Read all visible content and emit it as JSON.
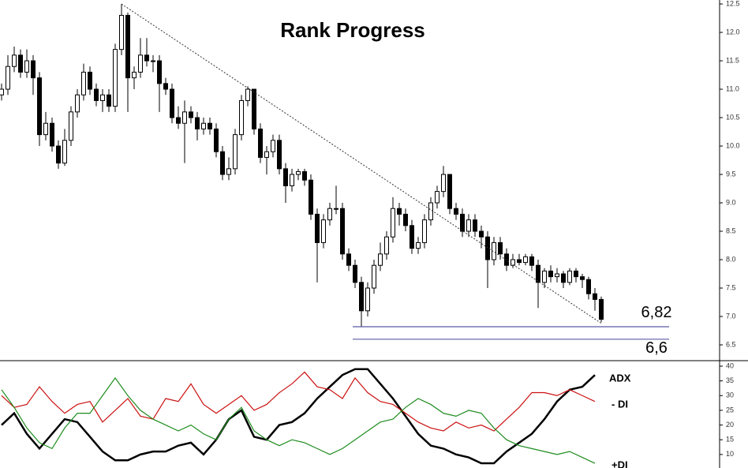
{
  "chart_data": [
    {
      "type": "candlestick",
      "title": "Rank Progress",
      "ohlc": [
        [
          10.9,
          11.1,
          10.8,
          11.0
        ],
        [
          11.0,
          11.6,
          10.9,
          11.4
        ],
        [
          11.4,
          11.75,
          11.3,
          11.6
        ],
        [
          11.6,
          11.7,
          11.2,
          11.3
        ],
        [
          11.3,
          11.7,
          11.2,
          11.5
        ],
        [
          11.5,
          11.6,
          10.9,
          11.2
        ],
        [
          11.2,
          11.3,
          10.0,
          10.2
        ],
        [
          10.2,
          10.6,
          10.1,
          10.4
        ],
        [
          10.4,
          10.5,
          9.9,
          10.0
        ],
        [
          10.0,
          10.1,
          9.6,
          9.7
        ],
        [
          9.7,
          10.3,
          9.65,
          10.1
        ],
        [
          10.1,
          10.7,
          10.0,
          10.6
        ],
        [
          10.6,
          11.0,
          10.5,
          10.9
        ],
        [
          10.9,
          11.45,
          10.8,
          11.3
        ],
        [
          11.3,
          11.4,
          10.9,
          11.0
        ],
        [
          11.0,
          11.1,
          10.7,
          10.8
        ],
        [
          10.8,
          11.0,
          10.6,
          10.9
        ],
        [
          10.9,
          11.0,
          10.6,
          10.7
        ],
        [
          10.7,
          11.8,
          10.6,
          11.7
        ],
        [
          11.7,
          12.5,
          11.6,
          12.3
        ],
        [
          12.3,
          12.35,
          10.6,
          11.2
        ],
        [
          11.2,
          11.4,
          11.0,
          11.3
        ],
        [
          11.3,
          11.9,
          11.2,
          11.6
        ],
        [
          11.6,
          11.9,
          11.4,
          11.5
        ],
        [
          11.5,
          11.6,
          11.3,
          11.5
        ],
        [
          11.5,
          11.6,
          10.6,
          11.1
        ],
        [
          11.1,
          11.2,
          10.9,
          11.0
        ],
        [
          11.0,
          11.1,
          10.4,
          10.5
        ],
        [
          10.5,
          10.7,
          10.3,
          10.4
        ],
        [
          10.4,
          10.8,
          9.7,
          10.6
        ],
        [
          10.6,
          10.7,
          10.4,
          10.5
        ],
        [
          10.5,
          10.6,
          10.1,
          10.3
        ],
        [
          10.3,
          10.5,
          10.2,
          10.4
        ],
        [
          10.4,
          10.5,
          10.2,
          10.3
        ],
        [
          10.3,
          10.4,
          9.8,
          9.9
        ],
        [
          9.9,
          10.0,
          9.4,
          9.5
        ],
        [
          9.5,
          9.8,
          9.4,
          9.6
        ],
        [
          9.6,
          10.3,
          9.5,
          10.2
        ],
        [
          10.2,
          10.9,
          10.1,
          10.8
        ],
        [
          10.8,
          11.05,
          10.7,
          11.0
        ],
        [
          11.0,
          11.0,
          10.2,
          10.3
        ],
        [
          10.3,
          10.4,
          9.7,
          9.8
        ],
        [
          9.8,
          10.0,
          9.5,
          9.9
        ],
        [
          9.9,
          10.2,
          9.8,
          10.1
        ],
        [
          10.1,
          10.2,
          9.5,
          9.6
        ],
        [
          9.6,
          9.7,
          9.0,
          9.3
        ],
        [
          9.3,
          9.6,
          9.2,
          9.5
        ],
        [
          9.5,
          9.6,
          9.4,
          9.55
        ],
        [
          9.55,
          9.6,
          9.3,
          9.4
        ],
        [
          9.4,
          9.5,
          8.7,
          8.8
        ],
        [
          8.8,
          8.9,
          7.6,
          8.3
        ],
        [
          8.3,
          8.8,
          8.2,
          8.7
        ],
        [
          8.7,
          9.0,
          8.6,
          8.9
        ],
        [
          8.9,
          9.3,
          8.8,
          8.9
        ],
        [
          8.9,
          9.0,
          8.0,
          8.1
        ],
        [
          8.1,
          8.2,
          7.8,
          7.9
        ],
        [
          7.9,
          8.0,
          7.5,
          7.6
        ],
        [
          7.6,
          7.7,
          6.82,
          7.1
        ],
        [
          7.1,
          7.6,
          7.0,
          7.5
        ],
        [
          7.5,
          8.0,
          7.4,
          7.9
        ],
        [
          7.9,
          8.3,
          7.8,
          8.1
        ],
        [
          8.1,
          8.5,
          8.0,
          8.4
        ],
        [
          8.4,
          9.1,
          8.3,
          8.9
        ],
        [
          8.9,
          9.0,
          8.6,
          8.8
        ],
        [
          8.8,
          8.9,
          8.5,
          8.6
        ],
        [
          8.6,
          8.7,
          8.1,
          8.2
        ],
        [
          8.2,
          8.4,
          8.1,
          8.3
        ],
        [
          8.3,
          8.8,
          8.2,
          8.7
        ],
        [
          8.7,
          9.1,
          8.6,
          9.0
        ],
        [
          9.0,
          9.3,
          8.9,
          9.2
        ],
        [
          9.2,
          9.65,
          9.1,
          9.5
        ],
        [
          9.5,
          9.5,
          8.8,
          8.9
        ],
        [
          8.9,
          9.0,
          8.7,
          8.8
        ],
        [
          8.8,
          8.9,
          8.4,
          8.5
        ],
        [
          8.5,
          8.8,
          8.4,
          8.7
        ],
        [
          8.7,
          8.8,
          8.4,
          8.5
        ],
        [
          8.5,
          8.6,
          8.2,
          8.4
        ],
        [
          8.4,
          8.5,
          7.5,
          8.0
        ],
        [
          8.0,
          8.4,
          7.9,
          8.3
        ],
        [
          8.3,
          8.4,
          8.0,
          8.1
        ],
        [
          8.1,
          8.2,
          7.8,
          7.9
        ],
        [
          7.9,
          8.1,
          7.85,
          8.0
        ],
        [
          8.0,
          8.1,
          7.9,
          7.95
        ],
        [
          7.95,
          8.1,
          7.9,
          8.05
        ],
        [
          8.05,
          8.1,
          7.8,
          7.9
        ],
        [
          7.9,
          8.0,
          7.15,
          7.6
        ],
        [
          7.6,
          7.85,
          7.5,
          7.8
        ],
        [
          7.8,
          7.9,
          7.6,
          7.7
        ],
        [
          7.7,
          7.85,
          7.6,
          7.75
        ],
        [
          7.75,
          7.8,
          7.5,
          7.6
        ],
        [
          7.6,
          7.85,
          7.55,
          7.8
        ],
        [
          7.8,
          7.85,
          7.6,
          7.7
        ],
        [
          7.7,
          7.75,
          7.5,
          7.65
        ],
        [
          7.65,
          7.7,
          7.3,
          7.4
        ],
        [
          7.4,
          7.5,
          7.1,
          7.3
        ],
        [
          7.3,
          7.35,
          6.9,
          6.95
        ]
      ],
      "trendline": {
        "x": [
          19,
          95
        ],
        "values": [
          12.5,
          6.88
        ]
      },
      "levels": [
        {
          "value": 6.82,
          "label": "6,82"
        },
        {
          "value": 6.6,
          "label": "6,6"
        }
      ],
      "ylim": [
        6.25,
        12.57
      ],
      "yticks": [
        6.5,
        {
          "value": 7,
          "label": "7.0"
        },
        7.5,
        {
          "value": 8,
          "label": "8.0"
        },
        8.5,
        {
          "value": 9,
          "label": "9.0"
        },
        9.5,
        {
          "value": 10,
          "label": "10.0"
        },
        10.5,
        {
          "value": 11,
          "label": "11.0"
        },
        11.5,
        {
          "value": 12,
          "label": "12.0"
        },
        12.5
      ]
    },
    {
      "type": "line",
      "series": [
        {
          "name": "ADX",
          "color": "#000000",
          "values": [
            20,
            24,
            17,
            12,
            17,
            22,
            21,
            16,
            11,
            8,
            8,
            10,
            11,
            11,
            13,
            14,
            10,
            15,
            22,
            25,
            16,
            15,
            20,
            21,
            24,
            29,
            33,
            37,
            39,
            39,
            34,
            29,
            23,
            17,
            13,
            12,
            10,
            9,
            7,
            7,
            11,
            14,
            17,
            22,
            28,
            32,
            33,
            37
          ]
        },
        {
          "name": "- DI",
          "color": "#cc1111",
          "values": [
            30,
            26,
            27,
            33,
            28,
            24,
            27,
            28,
            21,
            25,
            29,
            23,
            22,
            29,
            28,
            34,
            27,
            24,
            27,
            30,
            25,
            27,
            31,
            34,
            38,
            33,
            32,
            29,
            36,
            31,
            28,
            27,
            24,
            21,
            19,
            18,
            21,
            19,
            20,
            18,
            22,
            26,
            31,
            31,
            30,
            32,
            30,
            28
          ]
        },
        {
          "name": "+DI",
          "color": "#1e8c1e",
          "values": [
            32,
            26,
            19,
            14,
            12,
            19,
            24,
            24,
            30,
            36,
            30,
            25,
            22,
            20,
            18,
            20,
            17,
            15,
            22,
            26,
            18,
            15,
            13,
            15,
            14,
            12,
            10,
            12,
            15,
            18,
            21,
            22,
            26,
            29,
            27,
            24,
            23,
            25,
            24,
            19,
            15,
            13,
            12,
            11,
            10,
            11,
            9,
            7
          ]
        }
      ],
      "ylim": [
        5.4,
        41.6
      ],
      "yticks": [
        10,
        15,
        20,
        25,
        30,
        35,
        40
      ]
    }
  ]
}
